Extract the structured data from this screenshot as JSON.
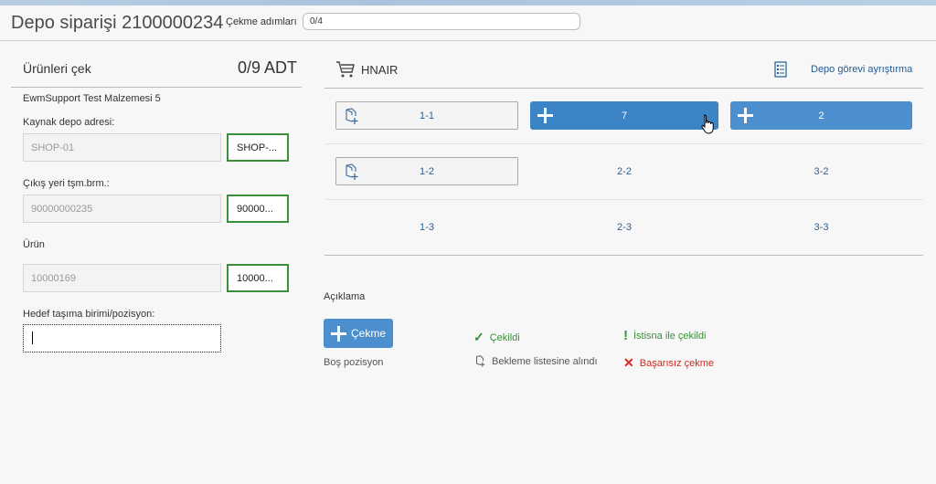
{
  "header": {
    "title": "Depo siparişi 2100000234",
    "steps_label": "Çekme adımları",
    "steps_value": "0/4"
  },
  "left": {
    "title": "Ürünleri çek",
    "quantity": "0/9 ADT",
    "product_name": "EwmSupport Test Malzemesi 5",
    "fields": [
      {
        "label": "Kaynak depo adresi:",
        "value": "SHOP-01",
        "check": "SHOP-..."
      },
      {
        "label": "Çıkış yeri tşm.brm.:",
        "value": "90000000235",
        "check": "90000..."
      },
      {
        "label": "Ürün",
        "value": "10000169",
        "check": "10000..."
      }
    ],
    "target_label": "Hedef taşıma birimi/pozisyon:",
    "target_value": ""
  },
  "right": {
    "resource": "HNAIR",
    "split_link": "Depo görevi ayrıştırma",
    "grid": [
      [
        "1-1",
        "7",
        "2"
      ],
      [
        "1-2",
        "2-2",
        "3-2"
      ],
      [
        "1-3",
        "2-3",
        "3-3"
      ]
    ]
  },
  "legend": {
    "title": "Açıklama",
    "pick_button": "Çekme",
    "empty": "Boş pozisyon",
    "picked": "Çekildi",
    "waitlist": "Bekleme listesine alındı",
    "exception": "İstisna ile çekildi",
    "failed": "Başarısız çekme"
  },
  "colors": {
    "accent": "#3b84c6",
    "success": "#3a8f3a",
    "error": "#d9251d"
  }
}
